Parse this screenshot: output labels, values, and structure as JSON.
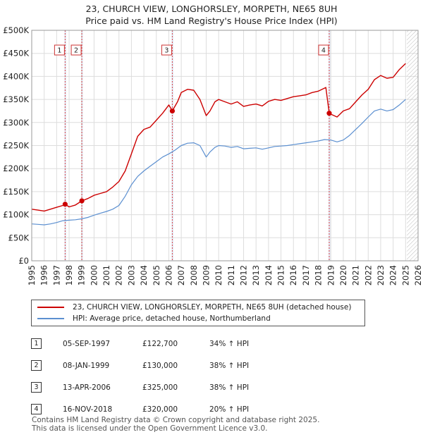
{
  "title_line1": "23, CHURCH VIEW, LONGHORSLEY, MORPETH, NE65 8UH",
  "title_line2": "Price paid vs. HM Land Registry's House Price Index (HPI)",
  "legend": {
    "property": "23, CHURCH VIEW, LONGHORSLEY, MORPETH, NE65 8UH (detached house)",
    "hpi": "HPI: Average price, detached house, Northumberland"
  },
  "colors": {
    "property": "#cc0000",
    "hpi": "#5b8fd0",
    "sale_line": "#dd4444",
    "sale_band": "#dde6f4"
  },
  "sales": [
    {
      "num": "1",
      "date": "05-SEP-1997",
      "price": "£122,700",
      "hpi": "34% ↑ HPI"
    },
    {
      "num": "2",
      "date": "08-JAN-1999",
      "price": "£130,000",
      "hpi": "38% ↑ HPI"
    },
    {
      "num": "3",
      "date": "13-APR-2006",
      "price": "£325,000",
      "hpi": "38% ↑ HPI"
    },
    {
      "num": "4",
      "date": "16-NOV-2018",
      "price": "£320,000",
      "hpi": "20% ↑ HPI"
    }
  ],
  "footer_line1": "Contains HM Land Registry data © Crown copyright and database right 2025.",
  "footer_line2": "This data is licensed under the Open Government Licence v3.0.",
  "chart_data": {
    "type": "line",
    "title": "23, CHURCH VIEW, LONGHORSLEY, MORPETH, NE65 8UH",
    "subtitle": "Price paid vs. HM Land Registry's House Price Index (HPI)",
    "xlim": [
      1995,
      2026
    ],
    "ylim": [
      0,
      500000
    ],
    "x_ticks": [
      1995,
      1996,
      1997,
      1998,
      1999,
      2000,
      2001,
      2002,
      2003,
      2004,
      2005,
      2006,
      2007,
      2008,
      2009,
      2010,
      2011,
      2012,
      2013,
      2014,
      2015,
      2016,
      2017,
      2018,
      2019,
      2020,
      2021,
      2022,
      2023,
      2024,
      2025,
      2026
    ],
    "y_ticks": [
      {
        "value": 0,
        "label": "£0"
      },
      {
        "value": 50000,
        "label": "£50K"
      },
      {
        "value": 100000,
        "label": "£100K"
      },
      {
        "value": 150000,
        "label": "£150K"
      },
      {
        "value": 200000,
        "label": "£200K"
      },
      {
        "value": 250000,
        "label": "£250K"
      },
      {
        "value": 300000,
        "label": "£300K"
      },
      {
        "value": 350000,
        "label": "£350K"
      },
      {
        "value": 400000,
        "label": "£400K"
      },
      {
        "value": 450000,
        "label": "£450K"
      },
      {
        "value": 500000,
        "label": "£500K"
      }
    ],
    "grid": true,
    "forecast_start": 2025.1,
    "series": [
      {
        "name": "23, CHURCH VIEW, LONGHORSLEY, MORPETH, NE65 8UH (detached house)",
        "x": [
          1995,
          1995.5,
          1996,
          1996.5,
          1997,
          1997.5,
          1997.68,
          1998,
          1998.5,
          1999.02,
          1999.5,
          2000,
          2000.5,
          2001,
          2001.5,
          2002,
          2002.5,
          2003,
          2003.5,
          2004,
          2004.5,
          2005,
          2005.5,
          2006,
          2006.28,
          2006.7,
          2007,
          2007.5,
          2008,
          2008.5,
          2009,
          2009.3,
          2009.7,
          2010,
          2010.5,
          2011,
          2011.5,
          2012,
          2012.5,
          2013,
          2013.5,
          2014,
          2014.5,
          2015,
          2015.5,
          2016,
          2016.5,
          2017,
          2017.5,
          2018,
          2018.6,
          2018.87,
          2019,
          2019.5,
          2020,
          2020.5,
          2021,
          2021.5,
          2022,
          2022.5,
          2023,
          2023.5,
          2024,
          2024.5,
          2025
        ],
        "values": [
          112000,
          110000,
          108000,
          112000,
          116000,
          120000,
          122700,
          117000,
          121000,
          130000,
          135000,
          142000,
          146000,
          150000,
          160000,
          172000,
          195000,
          232000,
          270000,
          285000,
          290000,
          305000,
          320000,
          338000,
          325000,
          345000,
          365000,
          372000,
          370000,
          350000,
          315000,
          325000,
          345000,
          350000,
          345000,
          340000,
          345000,
          335000,
          338000,
          340000,
          336000,
          346000,
          350000,
          348000,
          352000,
          356000,
          358000,
          360000,
          365000,
          368000,
          376000,
          320000,
          318000,
          312000,
          325000,
          330000,
          345000,
          360000,
          372000,
          393000,
          402000,
          396000,
          398000,
          415000,
          428000
        ]
      },
      {
        "name": "HPI: Average price, detached house, Northumberland",
        "x": [
          1995,
          1995.5,
          1996,
          1996.5,
          1997,
          1997.5,
          1998,
          1998.5,
          1999,
          1999.5,
          2000,
          2000.5,
          2001,
          2001.5,
          2002,
          2002.5,
          2003,
          2003.5,
          2004,
          2004.5,
          2005,
          2005.5,
          2006,
          2006.5,
          2007,
          2007.5,
          2008,
          2008.5,
          2009,
          2009.3,
          2009.7,
          2010,
          2010.5,
          2011,
          2011.5,
          2012,
          2012.5,
          2013,
          2013.5,
          2014,
          2014.5,
          2015,
          2015.5,
          2016,
          2016.5,
          2017,
          2017.5,
          2018,
          2018.5,
          2019,
          2019.5,
          2020,
          2020.5,
          2021,
          2021.5,
          2022,
          2022.5,
          2023,
          2023.5,
          2024,
          2024.5,
          2025
        ],
        "values": [
          80000,
          79000,
          78000,
          80000,
          83000,
          87000,
          88000,
          89000,
          91000,
          94000,
          99000,
          103000,
          107000,
          112000,
          120000,
          140000,
          165000,
          183000,
          195000,
          205000,
          215000,
          225000,
          232000,
          240000,
          250000,
          255000,
          256000,
          250000,
          225000,
          236000,
          246000,
          250000,
          249000,
          246000,
          248000,
          243000,
          244000,
          245000,
          242000,
          245000,
          248000,
          249000,
          250000,
          252000,
          254000,
          256000,
          258000,
          260000,
          263000,
          262000,
          258000,
          262000,
          272000,
          285000,
          298000,
          312000,
          325000,
          329000,
          325000,
          328000,
          338000,
          350000
        ]
      }
    ],
    "sales": [
      {
        "num": "1",
        "x": 1997.68,
        "y": 122700
      },
      {
        "num": "2",
        "x": 1999.02,
        "y": 130000
      },
      {
        "num": "3",
        "x": 2006.28,
        "y": 325000
      },
      {
        "num": "4",
        "x": 2018.87,
        "y": 320000
      }
    ]
  }
}
